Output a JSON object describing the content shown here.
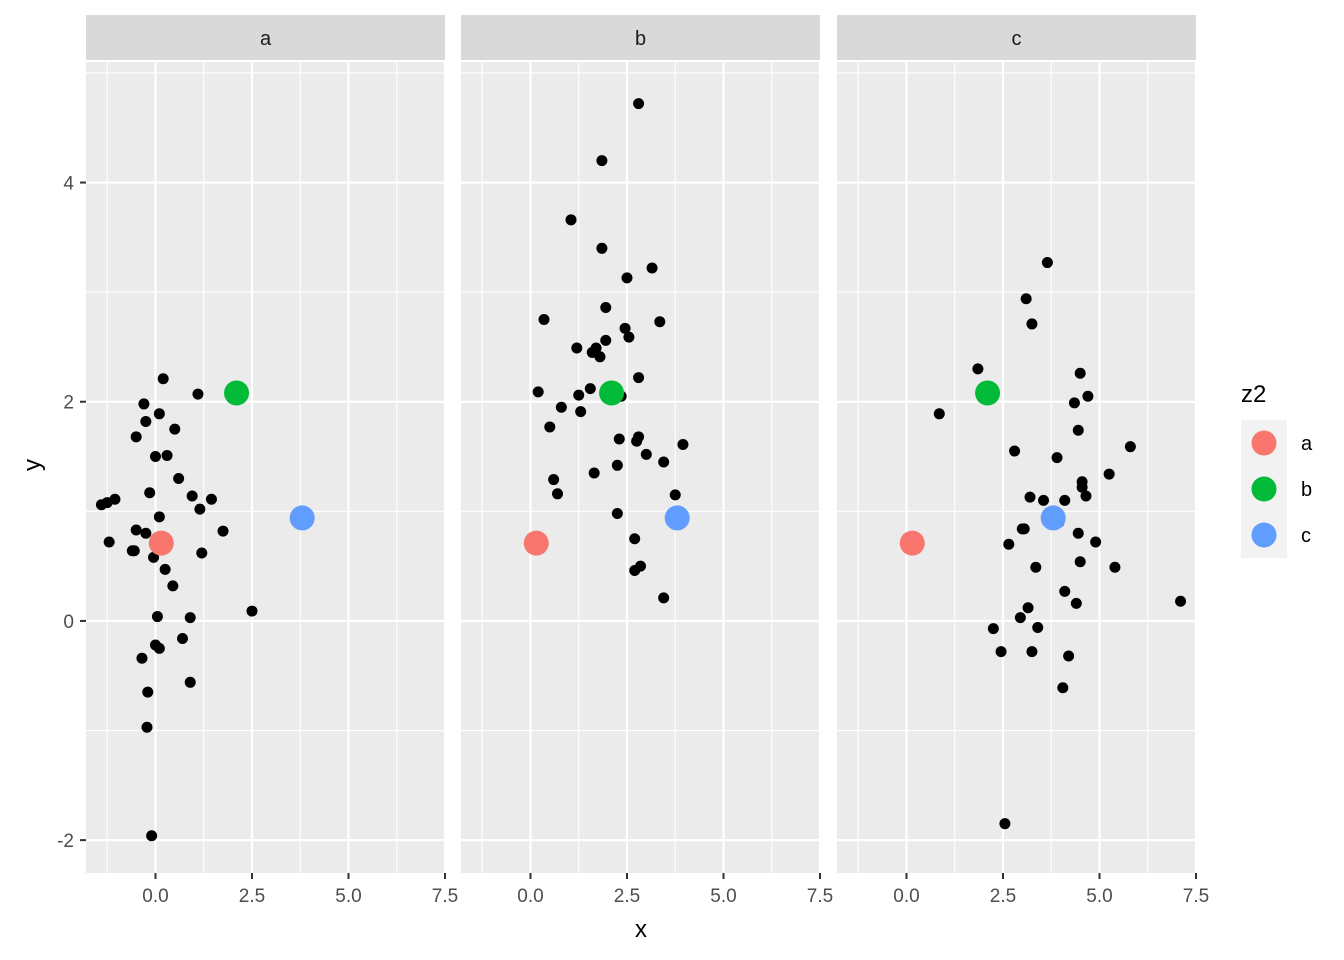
{
  "chart_data": {
    "type": "scatter",
    "xlabel": "x",
    "ylabel": "y",
    "xlim": [
      -1.8,
      7.5
    ],
    "ylim": [
      -2.3,
      5.1
    ],
    "x_ticks": [
      0,
      2.5,
      5,
      7.5
    ],
    "y_ticks": [
      -2,
      0,
      2,
      4
    ],
    "x_tick_labels": [
      "0.0",
      "2.5",
      "5.0",
      "7.5"
    ],
    "y_tick_labels": [
      "-2",
      "0",
      "2",
      "4"
    ],
    "grid": true,
    "legend": {
      "title": "z2",
      "position": "right",
      "entries": [
        {
          "label": "a",
          "color": "#F8766D"
        },
        {
          "label": "b",
          "color": "#00BA38"
        },
        {
          "label": "c",
          "color": "#619CFF"
        }
      ]
    },
    "highlight_points": [
      {
        "group": "a",
        "x": 0.15,
        "y": 0.71,
        "color": "#F8766D"
      },
      {
        "group": "b",
        "x": 2.1,
        "y": 2.08,
        "color": "#00BA38"
      },
      {
        "group": "c",
        "x": 3.8,
        "y": 0.94,
        "color": "#619CFF"
      }
    ],
    "panels": [
      {
        "strip": "a",
        "points": [
          [
            -1.4,
            1.06
          ],
          [
            -1.25,
            1.08
          ],
          [
            -1.2,
            0.72
          ],
          [
            -1.05,
            1.11
          ],
          [
            -0.6,
            0.64
          ],
          [
            -0.55,
            0.64
          ],
          [
            -0.5,
            1.68
          ],
          [
            -0.5,
            0.83
          ],
          [
            -0.35,
            -0.34
          ],
          [
            -0.3,
            1.98
          ],
          [
            -0.25,
            0.8
          ],
          [
            -0.25,
            1.82
          ],
          [
            -0.22,
            -0.97
          ],
          [
            -0.2,
            -0.65
          ],
          [
            -0.15,
            1.17
          ],
          [
            -0.1,
            -1.96
          ],
          [
            -0.05,
            0.58
          ],
          [
            0,
            1.5
          ],
          [
            0,
            -0.22
          ],
          [
            0.05,
            0.04
          ],
          [
            0.1,
            1.89
          ],
          [
            0.1,
            -0.25
          ],
          [
            0.1,
            0.95
          ],
          [
            0.2,
            2.21
          ],
          [
            0.25,
            0.47
          ],
          [
            0.3,
            1.51
          ],
          [
            0.45,
            0.32
          ],
          [
            0.5,
            1.75
          ],
          [
            0.6,
            1.3
          ],
          [
            0.7,
            -0.16
          ],
          [
            0.9,
            0.03
          ],
          [
            0.9,
            -0.56
          ],
          [
            0.95,
            1.14
          ],
          [
            1.1,
            2.07
          ],
          [
            1.15,
            1.02
          ],
          [
            1.2,
            0.62
          ],
          [
            1.45,
            1.11
          ],
          [
            1.75,
            0.82
          ],
          [
            2.5,
            0.09
          ]
        ]
      },
      {
        "strip": "b",
        "points": [
          [
            0.2,
            2.09
          ],
          [
            0.35,
            2.75
          ],
          [
            0.5,
            1.77
          ],
          [
            0.6,
            1.29
          ],
          [
            0.7,
            1.16
          ],
          [
            0.8,
            1.95
          ],
          [
            1.05,
            3.66
          ],
          [
            1.2,
            2.49
          ],
          [
            1.25,
            2.06
          ],
          [
            1.3,
            1.91
          ],
          [
            1.55,
            2.12
          ],
          [
            1.6,
            2.45
          ],
          [
            1.65,
            1.35
          ],
          [
            1.7,
            2.49
          ],
          [
            1.8,
            2.41
          ],
          [
            1.85,
            4.2
          ],
          [
            1.85,
            3.4
          ],
          [
            1.95,
            2.86
          ],
          [
            1.95,
            2.56
          ],
          [
            2.25,
            1.42
          ],
          [
            2.25,
            0.98
          ],
          [
            2.3,
            1.66
          ],
          [
            2.35,
            2.05
          ],
          [
            2.45,
            2.67
          ],
          [
            2.5,
            3.13
          ],
          [
            2.55,
            2.59
          ],
          [
            2.7,
            0.75
          ],
          [
            2.7,
            0.46
          ],
          [
            2.75,
            1.64
          ],
          [
            2.8,
            1.68
          ],
          [
            2.8,
            2.22
          ],
          [
            2.8,
            4.72
          ],
          [
            2.85,
            0.5
          ],
          [
            3,
            1.52
          ],
          [
            3.15,
            3.22
          ],
          [
            3.35,
            2.73
          ],
          [
            3.45,
            1.45
          ],
          [
            3.45,
            0.21
          ],
          [
            3.75,
            1.15
          ],
          [
            3.95,
            1.61
          ]
        ]
      },
      {
        "strip": "c",
        "points": [
          [
            0.85,
            1.89
          ],
          [
            1.85,
            2.3
          ],
          [
            2.25,
            -0.07
          ],
          [
            2.45,
            -0.28
          ],
          [
            2.55,
            -1.85
          ],
          [
            2.65,
            0.7
          ],
          [
            2.8,
            1.55
          ],
          [
            2.95,
            0.03
          ],
          [
            3,
            0.84
          ],
          [
            3.05,
            0.84
          ],
          [
            3.1,
            2.94
          ],
          [
            3.15,
            0.12
          ],
          [
            3.2,
            1.13
          ],
          [
            3.25,
            2.71
          ],
          [
            3.25,
            -0.28
          ],
          [
            3.35,
            0.49
          ],
          [
            3.4,
            -0.06
          ],
          [
            3.55,
            1.1
          ],
          [
            3.65,
            3.27
          ],
          [
            3.9,
            1.49
          ],
          [
            3.95,
            0.9
          ],
          [
            4.05,
            -0.61
          ],
          [
            4.1,
            1.1
          ],
          [
            4.1,
            0.27
          ],
          [
            4.2,
            -0.32
          ],
          [
            4.35,
            1.99
          ],
          [
            4.4,
            0.16
          ],
          [
            4.45,
            0.8
          ],
          [
            4.45,
            1.74
          ],
          [
            4.5,
            0.54
          ],
          [
            4.5,
            2.26
          ],
          [
            4.55,
            1.27
          ],
          [
            4.55,
            1.22
          ],
          [
            4.65,
            1.14
          ],
          [
            4.7,
            2.05
          ],
          [
            4.9,
            0.72
          ],
          [
            5.25,
            1.34
          ],
          [
            5.4,
            0.49
          ],
          [
            5.8,
            1.59
          ],
          [
            7.1,
            0.18
          ]
        ]
      }
    ]
  }
}
